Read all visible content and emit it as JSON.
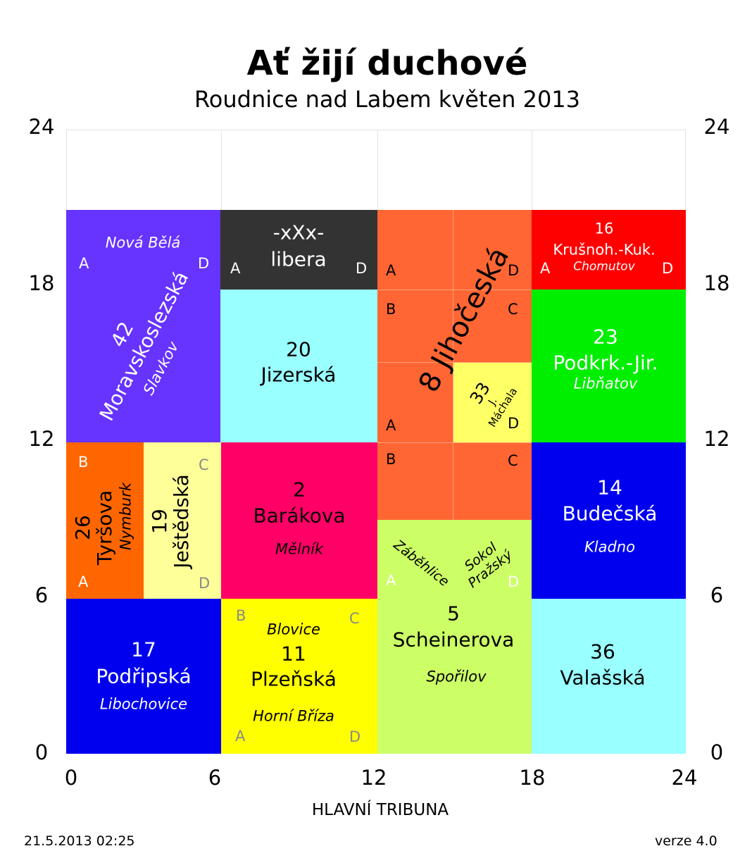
{
  "title": "Ať žijí duchové",
  "subtitle": "Roudnice nad Labem květen 2013",
  "axis": {
    "x_ticks": [
      "0",
      "6",
      "12",
      "18",
      "24"
    ],
    "y_ticks": [
      "24",
      "18",
      "12",
      "6",
      "0"
    ],
    "x_label": "HLAVNÍ TRIBUNA"
  },
  "footer": {
    "timestamp": "21.5.2013 02:25",
    "version": "verze 4.0"
  },
  "colors": {
    "purple": "#6633ff",
    "dark": "#333333",
    "orange": "#ff6633",
    "red": "#ff0000",
    "green": "#00ee00",
    "cyan": "#99ffff",
    "paleyellow": "#ffff99",
    "magenta": "#ff0066",
    "blue": "#0000ee",
    "yellow": "#ffff00",
    "lime": "#ccff66",
    "tyrs": "#ff6600"
  },
  "corners": {
    "a": "A",
    "b": "B",
    "c": "C",
    "d": "D"
  },
  "blocks": {
    "moravskoslezska": {
      "number": "42",
      "name": "Moravskoslezská",
      "top_town": "Nová Bělá",
      "town": "Slavkov"
    },
    "libera": {
      "line1": "-xXx-",
      "line2": "libera"
    },
    "jihoceska": {
      "number": "8",
      "name": "Jihočeská"
    },
    "krusnoh": {
      "number": "16",
      "name": "Krušnoh.-Kuk.",
      "town": "Chomutov"
    },
    "jizerska": {
      "number": "20",
      "name": "Jizerská"
    },
    "podkrk": {
      "number": "23",
      "name": "Podkrk.-Jir.",
      "town": "Libňatov"
    },
    "machala": {
      "number": "33",
      "name": "J. Máchala"
    },
    "tyrsova": {
      "number": "26",
      "name": "Tyršova",
      "town": "Nymburk"
    },
    "jestedska": {
      "number": "19",
      "name": "Ještědská"
    },
    "barakova": {
      "number": "2",
      "name": "Barákova",
      "town": "Mělník"
    },
    "zabehlice": {
      "left_town": "Záběhlice",
      "right_town_1": "Sokol",
      "right_town_2": "Pražský"
    },
    "budecska": {
      "number": "14",
      "name": "Budečská",
      "town": "Kladno"
    },
    "podripska": {
      "number": "17",
      "name": "Podřipská",
      "town": "Libochovice"
    },
    "plzenska": {
      "number": "11",
      "name": "Plzeňská",
      "top_town": "Blovice",
      "town": "Horní Bříza"
    },
    "scheinerova": {
      "number": "5",
      "name": "Scheinerova",
      "town": "Spořilov"
    },
    "valasska": {
      "number": "36",
      "name": "Valašská"
    }
  }
}
